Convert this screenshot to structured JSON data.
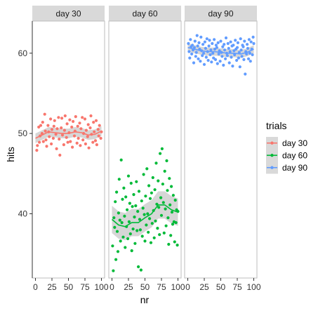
{
  "chart_data": {
    "type": "scatter",
    "xlabel": "nr",
    "ylabel": "hits",
    "xlim": [
      0,
      100
    ],
    "ylim": [
      32,
      64
    ],
    "x_ticks": [
      0,
      25,
      50,
      75,
      100
    ],
    "y_ticks": [
      40,
      50,
      60
    ],
    "grid": false,
    "legend": {
      "title": "trials",
      "placement": "right",
      "entries": [
        "day 30",
        "day 60",
        "day 90"
      ]
    },
    "panels": [
      {
        "label": "day 30",
        "color": "#F8766D",
        "points": [
          [
            2,
            47.9
          ],
          [
            3,
            48.5
          ],
          [
            5,
            50.8
          ],
          [
            6,
            48.9
          ],
          [
            7,
            49.7
          ],
          [
            8,
            51.0
          ],
          [
            10,
            50.0
          ],
          [
            11,
            51.4
          ],
          [
            12,
            49.0
          ],
          [
            14,
            52.4
          ],
          [
            15,
            50.3
          ],
          [
            16,
            49.2
          ],
          [
            17,
            48.4
          ],
          [
            19,
            51.0
          ],
          [
            20,
            50.2
          ],
          [
            21,
            49.6
          ],
          [
            23,
            51.8
          ],
          [
            24,
            48.7
          ],
          [
            25,
            50.5
          ],
          [
            27,
            49.4
          ],
          [
            28,
            50.9
          ],
          [
            29,
            51.6
          ],
          [
            31,
            49.9
          ],
          [
            32,
            48.1
          ],
          [
            33,
            50.6
          ],
          [
            35,
            52.0
          ],
          [
            36,
            49.3
          ],
          [
            37,
            47.3
          ],
          [
            39,
            50.7
          ],
          [
            40,
            51.9
          ],
          [
            41,
            49.8
          ],
          [
            43,
            48.6
          ],
          [
            44,
            50.4
          ],
          [
            45,
            52.2
          ],
          [
            47,
            49.5
          ],
          [
            48,
            51.2
          ],
          [
            49,
            48.9
          ],
          [
            51,
            50.1
          ],
          [
            52,
            51.7
          ],
          [
            53,
            49.0
          ],
          [
            55,
            50.8
          ],
          [
            56,
            48.3
          ],
          [
            57,
            51.5
          ],
          [
            59,
            49.7
          ],
          [
            60,
            50.3
          ],
          [
            61,
            52.1
          ],
          [
            63,
            48.8
          ],
          [
            64,
            50.9
          ],
          [
            65,
            49.4
          ],
          [
            67,
            51.3
          ],
          [
            68,
            48.5
          ],
          [
            69,
            50.6
          ],
          [
            71,
            52.0
          ],
          [
            72,
            49.2
          ],
          [
            73,
            50.0
          ],
          [
            75,
            51.8
          ],
          [
            76,
            48.7
          ],
          [
            77,
            50.4
          ],
          [
            79,
            49.6
          ],
          [
            80,
            51.1
          ],
          [
            81,
            48.2
          ],
          [
            83,
            50.7
          ],
          [
            84,
            52.2
          ],
          [
            85,
            49.9
          ],
          [
            87,
            48.9
          ],
          [
            88,
            51.4
          ],
          [
            89,
            50.2
          ],
          [
            91,
            49.1
          ],
          [
            92,
            51.6
          ],
          [
            93,
            48.6
          ],
          [
            95,
            50.5
          ],
          [
            96,
            49.7
          ],
          [
            97,
            51.0
          ],
          [
            99,
            49.4
          ],
          [
            100,
            50.2
          ]
        ],
        "smooth": [
          [
            0,
            49.4
          ],
          [
            10,
            49.8
          ],
          [
            20,
            50.2
          ],
          [
            30,
            50.1
          ],
          [
            40,
            50.0
          ],
          [
            50,
            50.0
          ],
          [
            60,
            50.2
          ],
          [
            70,
            50.1
          ],
          [
            80,
            49.8
          ],
          [
            90,
            49.9
          ],
          [
            100,
            50.3
          ]
        ],
        "band": 0.6
      },
      {
        "label": "day 60",
        "color": "#00BA38",
        "points": [
          [
            1,
            36.0
          ],
          [
            2,
            32.9
          ],
          [
            3,
            39.5
          ],
          [
            4,
            38.3
          ],
          [
            5,
            41.5
          ],
          [
            6,
            34.3
          ],
          [
            7,
            42.7
          ],
          [
            8,
            37.8
          ],
          [
            9,
            35.3
          ],
          [
            10,
            40.1
          ],
          [
            11,
            44.3
          ],
          [
            12,
            39.2
          ],
          [
            13,
            36.6
          ],
          [
            14,
            46.7
          ],
          [
            15,
            38.9
          ],
          [
            16,
            41.8
          ],
          [
            17,
            37.1
          ],
          [
            18,
            43.2
          ],
          [
            19,
            39.7
          ],
          [
            20,
            35.8
          ],
          [
            21,
            42.1
          ],
          [
            22,
            38.4
          ],
          [
            23,
            40.5
          ],
          [
            24,
            36.9
          ],
          [
            25,
            44.7
          ],
          [
            26,
            39.0
          ],
          [
            27,
            41.3
          ],
          [
            28,
            37.5
          ],
          [
            29,
            43.8
          ],
          [
            30,
            35.4
          ],
          [
            31,
            40.9
          ],
          [
            32,
            38.1
          ],
          [
            33,
            42.4
          ],
          [
            34,
            39.6
          ],
          [
            35,
            36.3
          ],
          [
            36,
            41.0
          ],
          [
            37,
            44.0
          ],
          [
            38,
            37.9
          ],
          [
            39,
            40.3
          ],
          [
            40,
            33.4
          ],
          [
            41,
            42.8
          ],
          [
            42,
            39.3
          ],
          [
            43,
            38.0
          ],
          [
            44,
            33.0
          ],
          [
            45,
            41.6
          ],
          [
            46,
            37.2
          ],
          [
            47,
            40.7
          ],
          [
            48,
            44.9
          ],
          [
            49,
            39.9
          ],
          [
            50,
            36.6
          ],
          [
            51,
            42.2
          ],
          [
            52,
            38.6
          ],
          [
            53,
            45.6
          ],
          [
            54,
            40.0
          ],
          [
            55,
            37.7
          ],
          [
            56,
            43.5
          ],
          [
            57,
            39.4
          ],
          [
            58,
            41.9
          ],
          [
            59,
            36.4
          ],
          [
            60,
            42.6
          ],
          [
            61,
            38.8
          ],
          [
            62,
            44.5
          ],
          [
            63,
            40.4
          ],
          [
            64,
            37.0
          ],
          [
            65,
            43.0
          ],
          [
            66,
            39.1
          ],
          [
            67,
            46.3
          ],
          [
            68,
            41.2
          ],
          [
            69,
            38.2
          ],
          [
            70,
            44.1
          ],
          [
            71,
            40.8
          ],
          [
            72,
            37.4
          ],
          [
            73,
            47.5
          ],
          [
            74,
            42.0
          ],
          [
            75,
            39.8
          ],
          [
            76,
            48.1
          ],
          [
            77,
            43.7
          ],
          [
            78,
            41.4
          ],
          [
            79,
            37.6
          ],
          [
            80,
            45.3
          ],
          [
            81,
            40.6
          ],
          [
            82,
            38.5
          ],
          [
            83,
            46.6
          ],
          [
            84,
            42.9
          ],
          [
            85,
            39.5
          ],
          [
            86,
            36.2
          ],
          [
            87,
            44.4
          ],
          [
            88,
            41.1
          ],
          [
            89,
            37.3
          ],
          [
            90,
            43.4
          ],
          [
            91,
            40.2
          ],
          [
            92,
            38.7
          ],
          [
            93,
            42.3
          ],
          [
            94,
            39.0
          ],
          [
            95,
            36.5
          ],
          [
            96,
            41.7
          ],
          [
            97,
            38.9
          ],
          [
            98,
            40.5
          ],
          [
            99,
            36.1
          ],
          [
            100,
            40.3
          ]
        ],
        "smooth": [
          [
            0,
            39.3
          ],
          [
            10,
            38.6
          ],
          [
            20,
            38.4
          ],
          [
            30,
            38.9
          ],
          [
            40,
            38.9
          ],
          [
            50,
            39.5
          ],
          [
            60,
            40.0
          ],
          [
            70,
            41.1
          ],
          [
            80,
            41.1
          ],
          [
            90,
            40.5
          ],
          [
            100,
            40.2
          ]
        ],
        "band": 1.7
      },
      {
        "label": "day 90",
        "color": "#619CFF",
        "points": [
          [
            1,
            61.2
          ],
          [
            2,
            60.2
          ],
          [
            3,
            59.4
          ],
          [
            4,
            61.7
          ],
          [
            5,
            60.8
          ],
          [
            6,
            59.9
          ],
          [
            7,
            61.0
          ],
          [
            8,
            60.4
          ],
          [
            9,
            58.8
          ],
          [
            10,
            60.7
          ],
          [
            11,
            61.5
          ],
          [
            12,
            59.6
          ],
          [
            13,
            60.1
          ],
          [
            14,
            62.2
          ],
          [
            15,
            60.9
          ],
          [
            16,
            59.3
          ],
          [
            17,
            61.3
          ],
          [
            18,
            60.5
          ],
          [
            19,
            59.0
          ],
          [
            20,
            62.0
          ],
          [
            21,
            60.3
          ],
          [
            22,
            59.7
          ],
          [
            23,
            61.1
          ],
          [
            24,
            60.0
          ],
          [
            25,
            58.6
          ],
          [
            26,
            61.4
          ],
          [
            27,
            60.6
          ],
          [
            28,
            59.5
          ],
          [
            29,
            61.8
          ],
          [
            30,
            60.2
          ],
          [
            31,
            59.1
          ],
          [
            32,
            60.9
          ],
          [
            33,
            61.6
          ],
          [
            34,
            59.8
          ],
          [
            35,
            60.4
          ],
          [
            36,
            58.9
          ],
          [
            37,
            61.2
          ],
          [
            38,
            60.0
          ],
          [
            39,
            59.4
          ],
          [
            40,
            61.7
          ],
          [
            41,
            60.5
          ],
          [
            42,
            59.2
          ],
          [
            43,
            61.0
          ],
          [
            44,
            60.7
          ],
          [
            45,
            58.7
          ],
          [
            46,
            61.3
          ],
          [
            47,
            59.9
          ],
          [
            48,
            60.3
          ],
          [
            49,
            59.0
          ],
          [
            50,
            61.5
          ],
          [
            51,
            60.1
          ],
          [
            52,
            59.6
          ],
          [
            53,
            60.8
          ],
          [
            54,
            58.5
          ],
          [
            55,
            61.1
          ],
          [
            56,
            60.4
          ],
          [
            57,
            59.3
          ],
          [
            58,
            61.9
          ],
          [
            59,
            60.0
          ],
          [
            60,
            59.7
          ],
          [
            61,
            61.2
          ],
          [
            62,
            60.6
          ],
          [
            63,
            58.8
          ],
          [
            64,
            60.2
          ],
          [
            65,
            61.4
          ],
          [
            66,
            59.5
          ],
          [
            67,
            60.9
          ],
          [
            68,
            58.4
          ],
          [
            69,
            61.0
          ],
          [
            70,
            60.3
          ],
          [
            71,
            59.8
          ],
          [
            72,
            61.6
          ],
          [
            73,
            60.5
          ],
          [
            74,
            59.1
          ],
          [
            75,
            60.7
          ],
          [
            76,
            61.3
          ],
          [
            77,
            59.4
          ],
          [
            78,
            60.1
          ],
          [
            79,
            58.3
          ],
          [
            80,
            61.8
          ],
          [
            81,
            60.4
          ],
          [
            82,
            59.6
          ],
          [
            83,
            61.0
          ],
          [
            84,
            60.8
          ],
          [
            85,
            59.2
          ],
          [
            86,
            61.5
          ],
          [
            87,
            57.4
          ],
          [
            88,
            60.2
          ],
          [
            89,
            59.9
          ],
          [
            90,
            61.1
          ],
          [
            91,
            60.6
          ],
          [
            92,
            59.3
          ],
          [
            93,
            61.7
          ],
          [
            94,
            60.0
          ],
          [
            95,
            59.0
          ],
          [
            96,
            61.4
          ],
          [
            97,
            60.5
          ],
          [
            98,
            59.8
          ],
          [
            99,
            62.0
          ],
          [
            100,
            61.2
          ]
        ],
        "smooth": [
          [
            0,
            60.7
          ],
          [
            10,
            60.5
          ],
          [
            20,
            60.3
          ],
          [
            30,
            60.2
          ],
          [
            40,
            60.2
          ],
          [
            50,
            60.1
          ],
          [
            60,
            60.0
          ],
          [
            70,
            60.0
          ],
          [
            80,
            59.9
          ],
          [
            90,
            60.1
          ],
          [
            100,
            60.5
          ]
        ],
        "band": 0.5
      }
    ]
  }
}
